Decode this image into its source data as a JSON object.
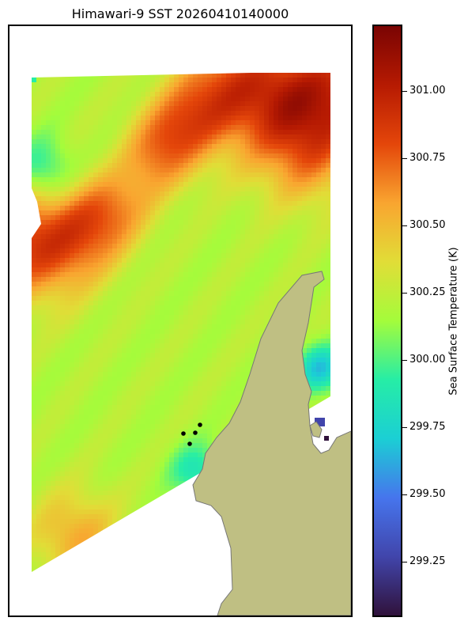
{
  "title": "Himawari-9 SST 20260410140000",
  "colorbar": {
    "label": "Sea Surface Temperature (K)",
    "min": 299.05,
    "max": 301.24,
    "ticks": [
      {
        "value": 301.0,
        "label": "301.00"
      },
      {
        "value": 300.75,
        "label": "300.75"
      },
      {
        "value": 300.5,
        "label": "300.50"
      },
      {
        "value": 300.25,
        "label": "300.25"
      },
      {
        "value": 300.0,
        "label": "300.00"
      },
      {
        "value": 299.75,
        "label": "299.75"
      },
      {
        "value": 299.5,
        "label": "299.50"
      },
      {
        "value": 299.25,
        "label": "299.25"
      }
    ],
    "colormap": "turbo"
  },
  "colors": {
    "land": "#bfbf83",
    "coast": "#777777",
    "frame": "#000000",
    "markers": "#000000"
  },
  "map": {
    "markers_count": 4
  }
}
